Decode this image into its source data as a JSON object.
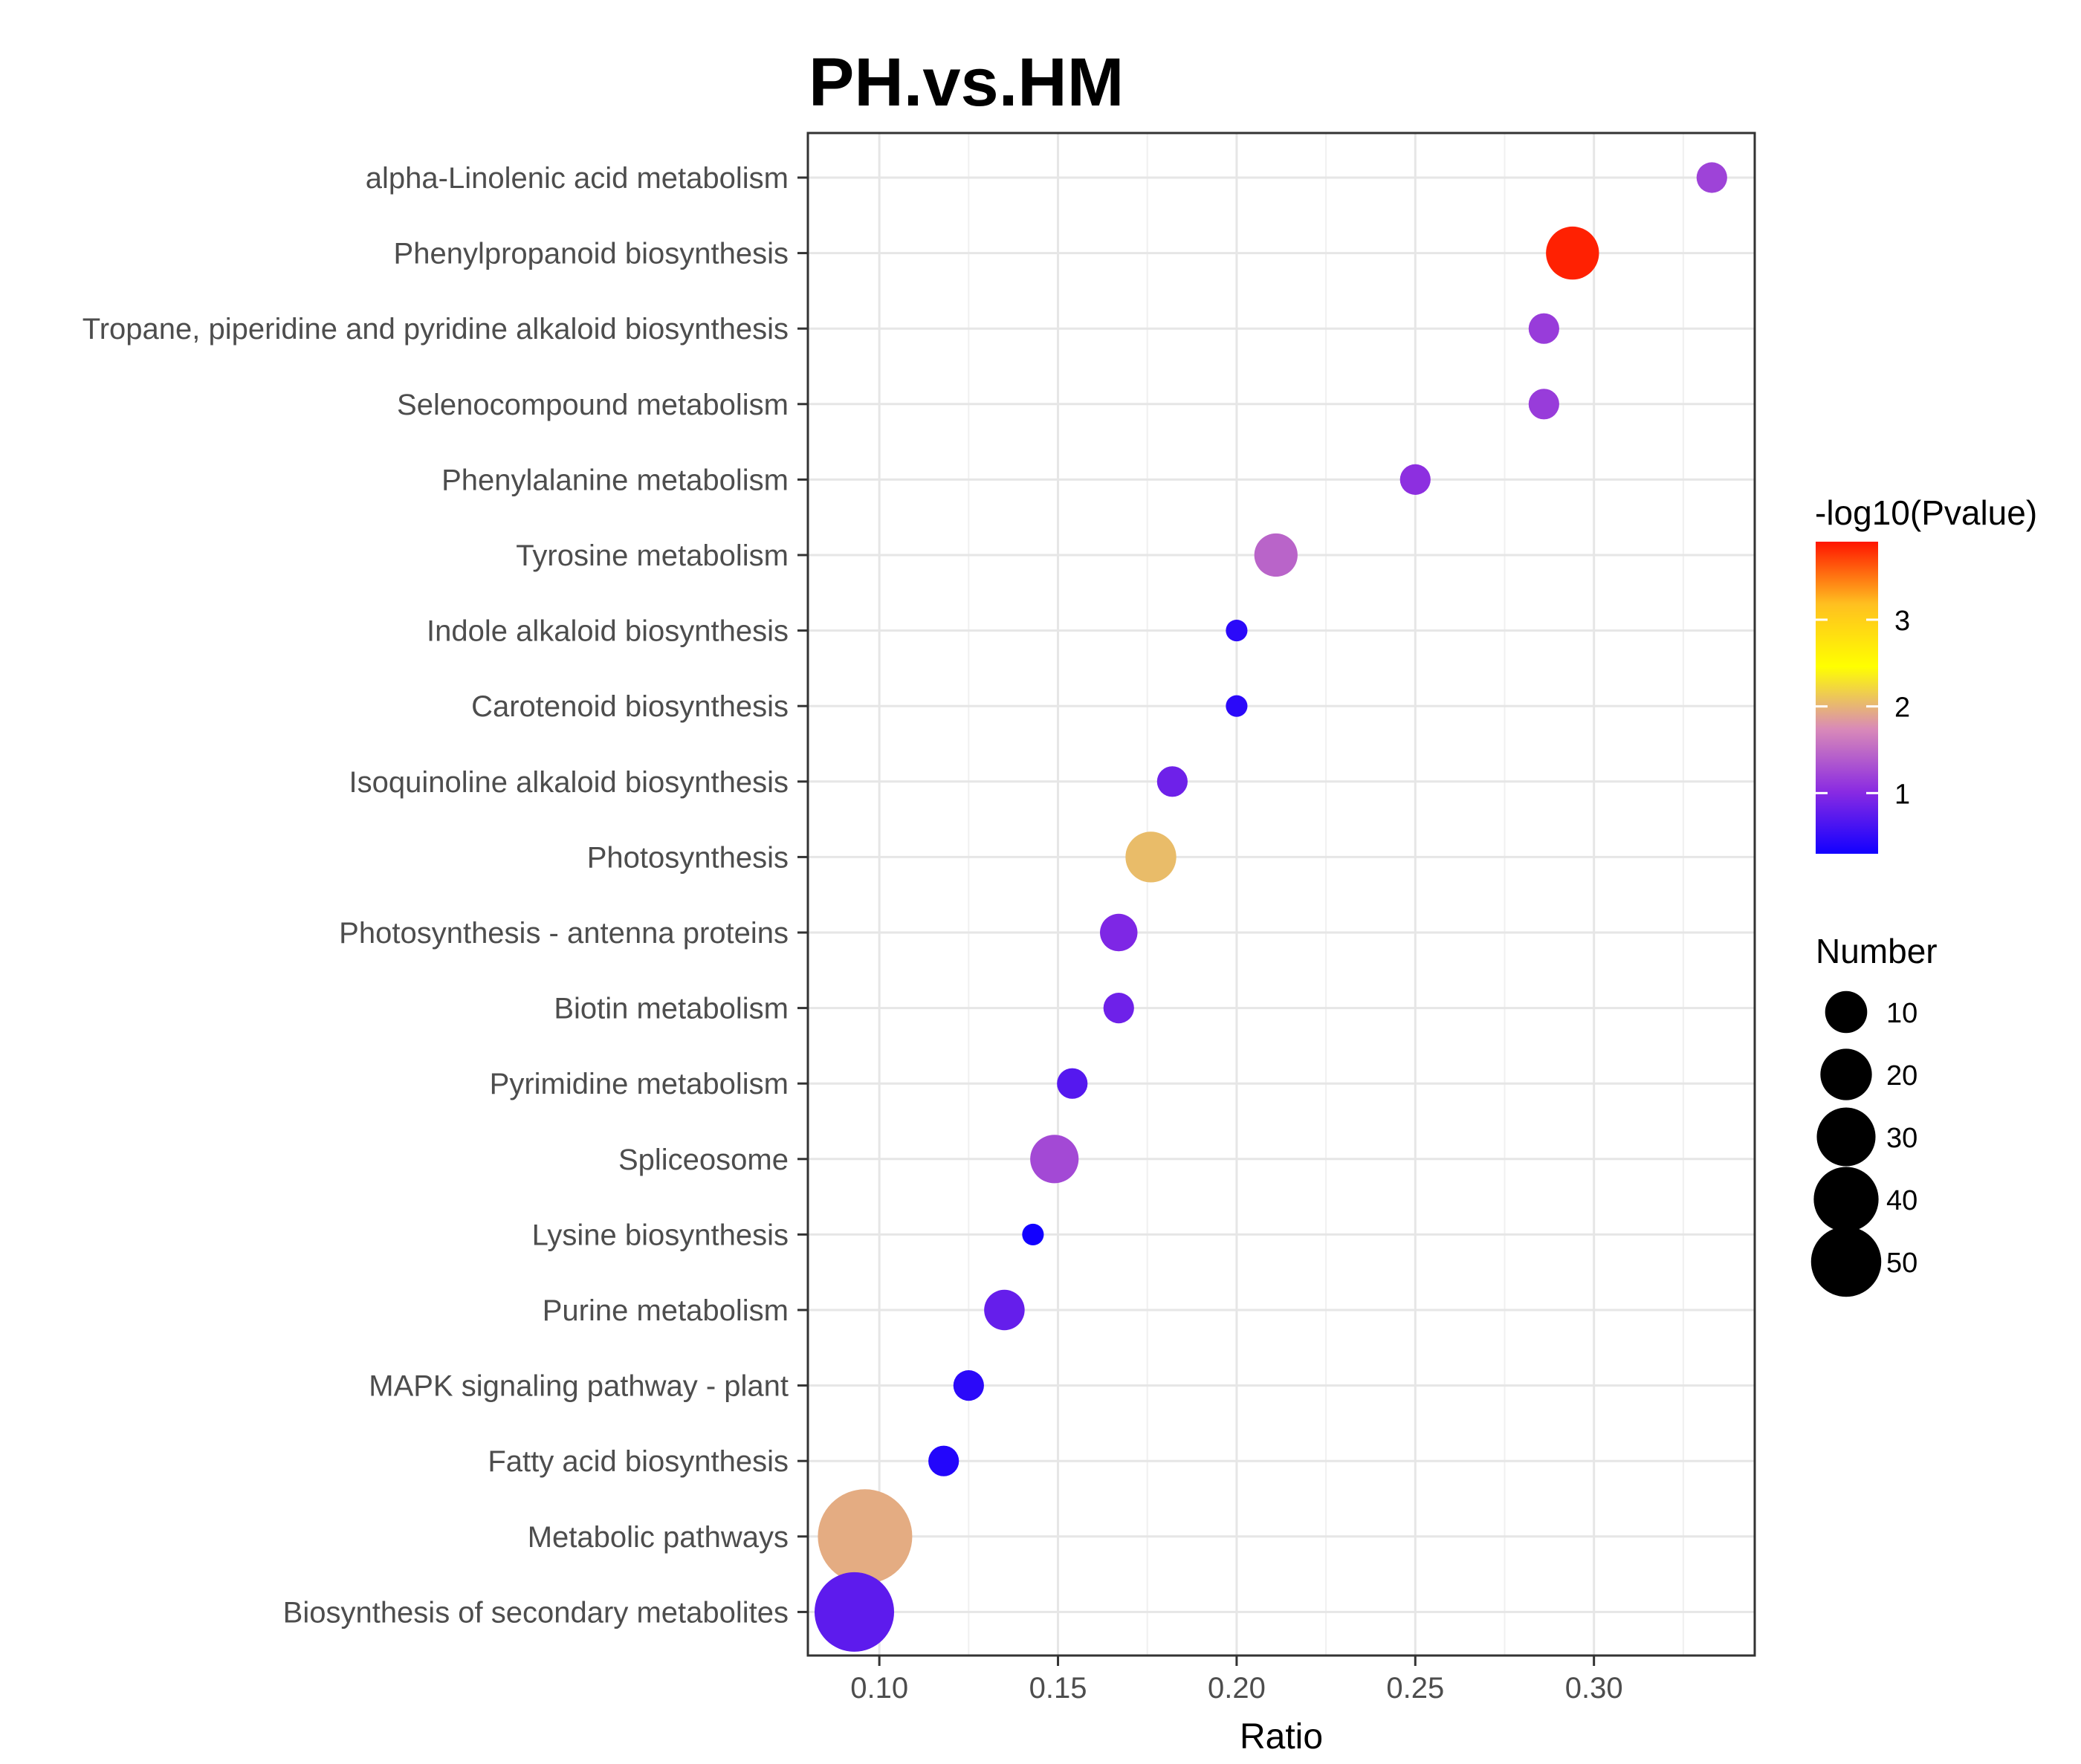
{
  "chart_data": {
    "type": "scatter",
    "title": "PH.vs.HM",
    "xlabel": "Ratio",
    "ylabel": "",
    "xlim": [
      0.08,
      0.345
    ],
    "xticks": [
      0.1,
      0.15,
      0.2,
      0.25,
      0.3
    ],
    "xtick_labels": [
      "0.10",
      "0.15",
      "0.20",
      "0.25",
      "0.30"
    ],
    "grid": true,
    "categories": [
      "alpha-Linolenic acid metabolism",
      "Phenylpropanoid biosynthesis",
      "Tropane, piperidine and pyridine alkaloid biosynthesis",
      "Selenocompound metabolism",
      "Phenylalanine metabolism",
      "Tyrosine metabolism",
      "Indole alkaloid biosynthesis",
      "Carotenoid biosynthesis",
      "Isoquinoline alkaloid biosynthesis",
      "Photosynthesis",
      "Photosynthesis - antenna proteins",
      "Biotin metabolism",
      "Pyrimidine metabolism",
      "Spliceosome",
      "Lysine biosynthesis",
      "Purine metabolism",
      "MAPK signaling pathway - plant",
      "Fatty acid biosynthesis",
      "Metabolic pathways",
      "Biosynthesis of secondary metabolites"
    ],
    "ratio": [
      0.333,
      0.294,
      0.286,
      0.286,
      0.25,
      0.211,
      0.2,
      0.2,
      0.182,
      0.176,
      0.167,
      0.167,
      0.154,
      0.149,
      0.143,
      0.135,
      0.125,
      0.118,
      0.096,
      0.093
    ],
    "neg_log10_pvalue": [
      1.2,
      3.85,
      1.15,
      1.15,
      1.05,
      1.45,
      0.45,
      0.45,
      0.85,
      2.05,
      0.95,
      0.85,
      0.7,
      1.25,
      0.3,
      0.8,
      0.45,
      0.4,
      1.95,
      0.75
    ],
    "number": [
      4,
      12,
      4,
      4,
      4,
      8,
      2,
      2,
      4,
      11,
      6,
      4,
      4,
      10,
      2,
      7,
      4,
      4,
      38,
      27
    ],
    "color_legend": {
      "title": "-log10(Pvalue)",
      "range": [
        0.3,
        3.9
      ],
      "ticks": [
        1,
        2,
        3
      ],
      "tick_labels": [
        "1",
        "2",
        "3"
      ],
      "colors": [
        "#1200ff",
        "#8a2be2",
        "#d98ab8",
        "#ffff00",
        "#ffc020",
        "#ff1500"
      ],
      "position": "right"
    },
    "size_legend": {
      "title": "Number",
      "values": [
        10,
        20,
        30,
        40,
        50
      ],
      "labels": [
        "10",
        "20",
        "30",
        "40",
        "50"
      ],
      "position": "right"
    }
  }
}
